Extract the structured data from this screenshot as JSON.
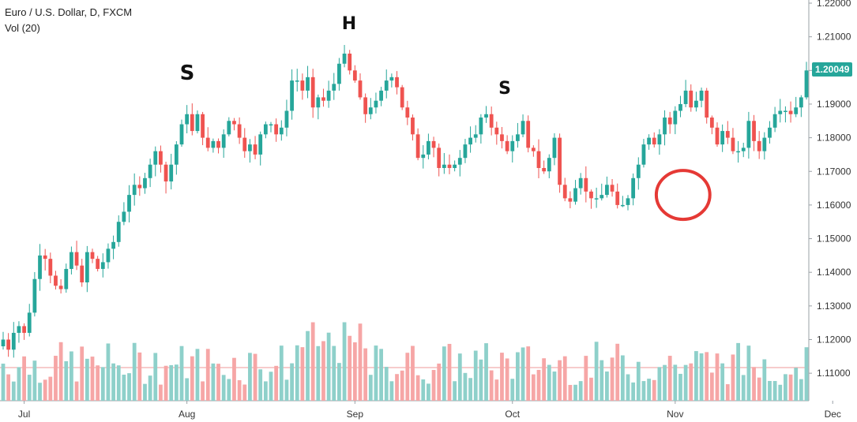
{
  "header": {
    "title": "Euro / U.S. Dollar, D, FXCM",
    "volume_label": "Vol (20)"
  },
  "annotations": {
    "left_shoulder": "S",
    "head": "H",
    "right_shoulder": "S"
  },
  "current_price": "1.20049",
  "colors": {
    "up": "#26a69a",
    "down": "#ef5350",
    "vol_up": "#8ed0ca",
    "vol_down": "#f6a6a6",
    "highlight": "#e53935"
  },
  "chart_data": {
    "type": "candlestick",
    "title": "Euro / U.S. Dollar, D, FXCM",
    "ylim": [
      1.1,
      1.22
    ],
    "y_ticks": [
      "1.22000",
      "1.21000",
      "1.20000",
      "1.19000",
      "1.18000",
      "1.17000",
      "1.16000",
      "1.15000",
      "1.14000",
      "1.13000",
      "1.12000",
      "1.11000"
    ],
    "x_ticks": [
      "Jul",
      "Aug",
      "Sep",
      "Oct",
      "Nov",
      "Dec"
    ],
    "x_tick_days": [
      4,
      35,
      67,
      97,
      128,
      158
    ],
    "start_date": "2020-06-26",
    "highlight_day_range": [
      125,
      134
    ],
    "closes": [
      1.12,
      1.117,
      1.122,
      1.124,
      1.122,
      1.128,
      1.138,
      1.145,
      1.144,
      1.139,
      1.136,
      1.135,
      1.141,
      1.146,
      1.142,
      1.137,
      1.146,
      1.144,
      1.141,
      1.143,
      1.147,
      1.149,
      1.155,
      1.158,
      1.163,
      1.166,
      1.165,
      1.168,
      1.172,
      1.176,
      1.172,
      1.167,
      1.172,
      1.178,
      1.184,
      1.187,
      1.182,
      1.187,
      1.18,
      1.177,
      1.179,
      1.177,
      1.181,
      1.185,
      1.184,
      1.18,
      1.176,
      1.178,
      1.175,
      1.181,
      1.184,
      1.184,
      1.181,
      1.183,
      1.188,
      1.197,
      1.197,
      1.194,
      1.198,
      1.189,
      1.192,
      1.191,
      1.194,
      1.196,
      1.202,
      1.205,
      1.2,
      1.197,
      1.192,
      1.187,
      1.189,
      1.191,
      1.194,
      1.197,
      1.198,
      1.195,
      1.189,
      1.186,
      1.181,
      1.174,
      1.175,
      1.179,
      1.177,
      1.171,
      1.172,
      1.171,
      1.172,
      1.174,
      1.178,
      1.18,
      1.181,
      1.186,
      1.187,
      1.183,
      1.181,
      1.179,
      1.176,
      1.179,
      1.181,
      1.185,
      1.177,
      1.176,
      1.171,
      1.17,
      1.174,
      1.18,
      1.166,
      1.162,
      1.161,
      1.165,
      1.168,
      1.164,
      1.162,
      1.162,
      1.163,
      1.166,
      1.164,
      1.16,
      1.16,
      1.162,
      1.168,
      1.172,
      1.178,
      1.18,
      1.178,
      1.181,
      1.186,
      1.184,
      1.188,
      1.19,
      1.194,
      1.189,
      1.191,
      1.194,
      1.186,
      1.183,
      1.178,
      1.182,
      1.18,
      1.176,
      1.176,
      1.177,
      1.185,
      1.179,
      1.176,
      1.18,
      1.183,
      1.187,
      1.188,
      1.188,
      1.187,
      1.189,
      1.192,
      1.2
    ]
  }
}
